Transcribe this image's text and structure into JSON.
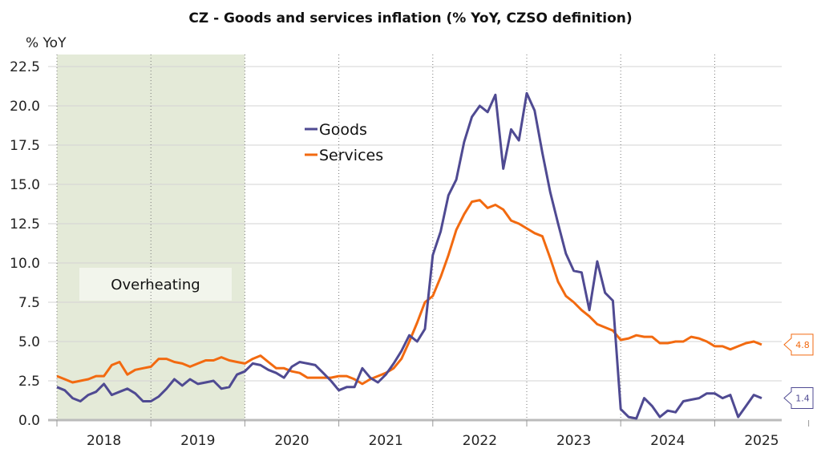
{
  "chart_data": {
    "type": "line",
    "title": "CZ - Goods and services inflation (% YoY, CZSO definition)",
    "ylabel": "% YoY",
    "xlabel": "",
    "ylim": [
      0,
      22.5
    ],
    "yticks": [
      "0.0",
      "2.5",
      "5.0",
      "7.5",
      "10.0",
      "12.5",
      "15.0",
      "17.5",
      "20.0",
      "22.5"
    ],
    "xtick_labels": [
      "2018",
      "2019",
      "2020",
      "2021",
      "2022",
      "2023",
      "2024",
      "2025"
    ],
    "x_start": "2018-01",
    "x_frequency": "monthly",
    "grid": true,
    "legend_position": "top-center",
    "shaded_region": {
      "label": "Overheating",
      "from": "2018-01",
      "to": "2019-12",
      "color": "#e4ead8"
    },
    "series": [
      {
        "name": "Goods",
        "color": "#4f4a92",
        "end_label": "1.4",
        "values": [
          2.1,
          1.9,
          1.4,
          1.2,
          1.6,
          1.8,
          2.3,
          1.6,
          1.8,
          2.0,
          1.7,
          1.2,
          1.2,
          1.5,
          2.0,
          2.6,
          2.2,
          2.6,
          2.3,
          2.4,
          2.5,
          2.0,
          2.1,
          2.9,
          3.1,
          3.6,
          3.5,
          3.2,
          3.0,
          2.7,
          3.4,
          3.7,
          3.6,
          3.5,
          3.0,
          2.5,
          1.9,
          2.1,
          2.1,
          3.3,
          2.7,
          2.4,
          2.9,
          3.6,
          4.4,
          5.4,
          5.0,
          5.8,
          10.5,
          12.0,
          14.3,
          15.3,
          17.7,
          19.3,
          20.0,
          19.6,
          20.7,
          16.0,
          18.5,
          17.8,
          20.8,
          19.7,
          17.0,
          14.5,
          12.5,
          10.6,
          9.5,
          9.4,
          7.0,
          10.1,
          8.1,
          7.6,
          0.7,
          0.2,
          0.1,
          1.4,
          0.9,
          0.2,
          0.6,
          0.5,
          1.2,
          1.3,
          1.4,
          1.7,
          1.7,
          1.4,
          1.6,
          0.2,
          0.9,
          1.6,
          1.4
        ]
      },
      {
        "name": "Services",
        "color": "#f26a10",
        "end_label": "4.8",
        "values": [
          2.8,
          2.6,
          2.4,
          2.5,
          2.6,
          2.8,
          2.8,
          3.5,
          3.7,
          2.9,
          3.2,
          3.3,
          3.4,
          3.9,
          3.9,
          3.7,
          3.6,
          3.4,
          3.6,
          3.8,
          3.8,
          4.0,
          3.8,
          3.7,
          3.6,
          3.9,
          4.1,
          3.7,
          3.3,
          3.3,
          3.1,
          3.0,
          2.7,
          2.7,
          2.7,
          2.7,
          2.8,
          2.8,
          2.6,
          2.3,
          2.6,
          2.8,
          3.0,
          3.3,
          3.9,
          5.0,
          6.2,
          7.5,
          7.9,
          9.1,
          10.5,
          12.1,
          13.1,
          13.9,
          14.0,
          13.5,
          13.7,
          13.4,
          12.7,
          12.5,
          12.2,
          11.9,
          11.7,
          10.3,
          8.8,
          7.9,
          7.5,
          7.0,
          6.6,
          6.1,
          5.9,
          5.7,
          5.1,
          5.2,
          5.4,
          5.3,
          5.3,
          4.9,
          4.9,
          5.0,
          5.0,
          5.3,
          5.2,
          5.0,
          4.7,
          4.7,
          4.5,
          4.7,
          4.9,
          5.0,
          4.8
        ]
      }
    ]
  }
}
